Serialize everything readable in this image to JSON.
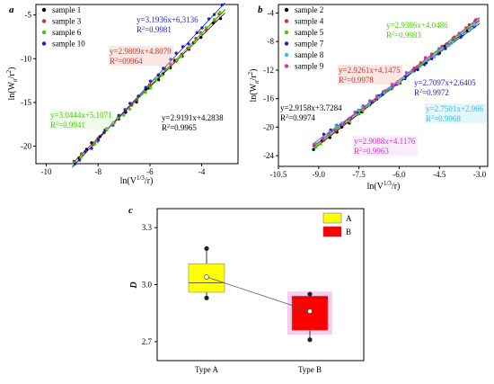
{
  "chart_data": [
    {
      "panel": "a",
      "type": "scatter",
      "xlim": [
        -10.4,
        -2.6
      ],
      "ylim": [
        -22,
        -3.8
      ],
      "xticks": [
        -10,
        -8,
        -6,
        -4
      ],
      "yticks": [
        -20,
        -15,
        -10,
        -5
      ],
      "xticklabels": [
        "-10",
        "-8",
        "-6",
        "-4"
      ],
      "yticklabels": [
        "-20",
        "-15",
        "-10",
        "-5"
      ],
      "xlabel": "ln(V^(1/3)/r)",
      "ylabel": "ln(W_n/r^2)",
      "legend_position": "top-left",
      "series": [
        {
          "name": "sample 1",
          "color": "#000000",
          "slope": 2.9191,
          "intercept": 4.2838,
          "equation": "y=2.9191x+4.2838",
          "r2": "R²=0.9965",
          "x_range": [
            -9.0,
            -3.1
          ]
        },
        {
          "name": "sample 3",
          "color": "#c0392b",
          "slope": 2.9809,
          "intercept": 4.8079,
          "equation": "y=2.9809x+4.8079",
          "r2": "R²=09964",
          "x_range": [
            -9.0,
            -3.1
          ]
        },
        {
          "name": "sample 6",
          "color": "#44cc00",
          "slope": 3.0444,
          "intercept": 5.1071,
          "equation": "y=3.0444x+5.1071",
          "r2": "R²=0.9941",
          "x_range": [
            -9.0,
            -3.1
          ]
        },
        {
          "name": "sample 10",
          "color": "#1f1fd0",
          "slope": 3.1936,
          "intercept": 6.3136,
          "equation": "y=3.1936x+6.3136",
          "r2": "R²=0.9981",
          "x_range": [
            -9.0,
            -3.1
          ]
        }
      ]
    },
    {
      "panel": "b",
      "type": "scatter",
      "xlim": [
        -10.5,
        -2.7
      ],
      "ylim": [
        -25.5,
        -2.8
      ],
      "xticks": [
        -10.5,
        -9.0,
        -7.5,
        -6.0,
        -4.5,
        -3.0
      ],
      "yticks": [
        -24,
        -20,
        -16,
        -12,
        -8,
        -4
      ],
      "xticklabels": [
        "-10.5",
        "-9.0",
        "-7.5",
        "-6.0",
        "-4.5",
        "-3.0"
      ],
      "yticklabels": [
        "-24",
        "-20",
        "-16",
        "-12",
        "-8",
        "-4"
      ],
      "xlabel": "ln(V^(1/3)/r)",
      "ylabel": "ln(W_n/r^2)",
      "legend_position": "top-left",
      "series": [
        {
          "name": "sample 2",
          "color": "#000000",
          "slope": 2.9158,
          "intercept": 3.7284,
          "equation": "y=2.9158x+3.7284",
          "r2": "R²=0.9974",
          "x_range": [
            -9.2,
            -3.0
          ]
        },
        {
          "name": "sample 4",
          "color": "#c0392b",
          "slope": 2.9261,
          "intercept": 4.1475,
          "equation": "y=2.9261x+4.1475",
          "r2": "R²=0.9978",
          "x_range": [
            -9.2,
            -3.0
          ]
        },
        {
          "name": "sample 5",
          "color": "#44cc00",
          "slope": 2.9386,
          "intercept": 4.0486,
          "equation": "y=2.9386x+4.0486",
          "r2": "R²=0.9983",
          "x_range": [
            -9.2,
            -3.0
          ]
        },
        {
          "name": "sample 7",
          "color": "#1f1fd0",
          "slope": 2.7097,
          "intercept": 2.6405,
          "equation": "y=2.7097x+2.6405",
          "r2": "R²=0.9972",
          "x_range": [
            -9.2,
            -3.0
          ]
        },
        {
          "name": "sample 8",
          "color": "#33bbee",
          "slope": 2.7501,
          "intercept": 2.966,
          "equation": "y=2.7501x+2.966",
          "r2": "R²=0.9968",
          "x_range": [
            -9.2,
            -3.0
          ]
        },
        {
          "name": "sample 9",
          "color": "#cc33cc",
          "slope": 2.9088,
          "intercept": 4.1176,
          "equation": "y=2.9088x+4.1176",
          "r2": "R²=0.9963",
          "x_range": [
            -9.2,
            -3.0
          ]
        }
      ]
    },
    {
      "panel": "c",
      "type": "box",
      "ylim": [
        2.6,
        3.4
      ],
      "yticks": [
        2.7,
        3.0,
        3.3
      ],
      "yticklabels": [
        "2.7",
        "3.0",
        "3.3"
      ],
      "ylabel": "D",
      "legend_position": "top-right",
      "groups": [
        {
          "category": "Type A",
          "legend": "A",
          "color": "#ffff00",
          "q1": 2.96,
          "median": 3.01,
          "q3": 3.11,
          "min": 2.93,
          "max": 3.19,
          "mean": 3.04,
          "points": [
            3.19,
            2.93
          ]
        },
        {
          "category": "Type B",
          "legend": "B",
          "color": "#ff0000",
          "q1": 2.76,
          "median": 2.93,
          "q3": 2.94,
          "min": 2.71,
          "max": 2.95,
          "mean": 2.86,
          "points": [
            2.95,
            2.71
          ]
        }
      ]
    }
  ]
}
